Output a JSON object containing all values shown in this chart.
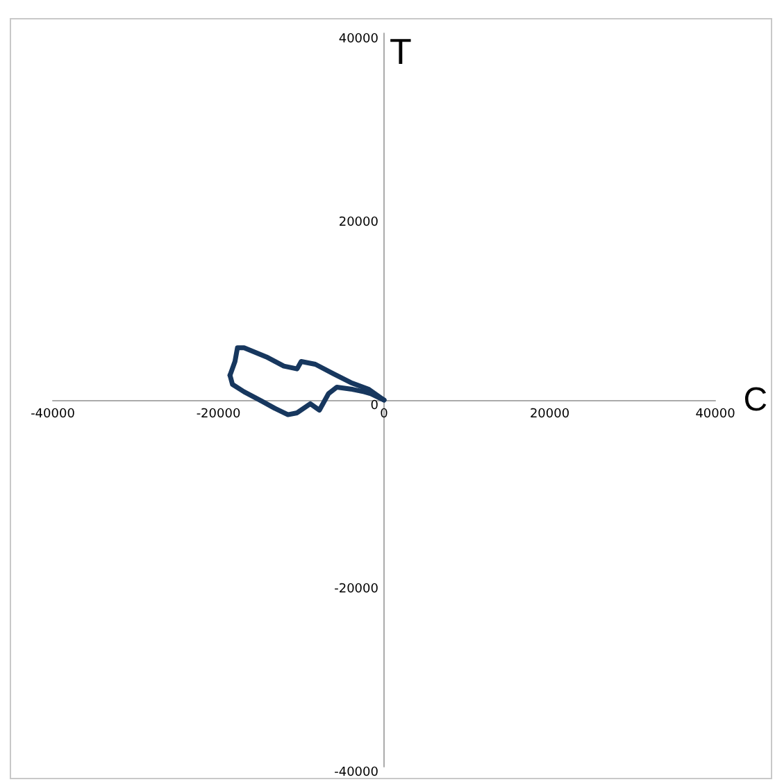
{
  "chart_data": {
    "type": "line",
    "xlabel": "C",
    "ylabel": "T",
    "xlim": [
      -40000,
      40000
    ],
    "xticks": [
      -40000,
      -20000,
      0,
      20000,
      40000
    ],
    "ylim": [
      -40000,
      40000
    ],
    "yticks": [
      -40000,
      -20000,
      0,
      20000,
      40000
    ],
    "marker": "none",
    "line_style": "solid",
    "series": [
      {
        "color": "#17375e",
        "x": [
          0,
          -1900,
          -4000,
          -6200,
          -8300,
          -10000,
          -10500,
          -12100,
          -14200,
          -16900,
          -17700,
          -18000,
          -18600
        ],
        "values": [
          0,
          1200,
          1900,
          2900,
          3900,
          4200,
          3400,
          3700,
          4700,
          5700,
          5700,
          4200,
          2700
        ]
      },
      {
        "color": "#17375e",
        "x": [
          -18600,
          -18300,
          -16900,
          -14800,
          -13200,
          -11600,
          -10500,
          -8900,
          -7800,
          -6700,
          -5700,
          -4000,
          -2400,
          -1600,
          0
        ],
        "values": [
          2700,
          1700,
          900,
          -100,
          -900,
          -1600,
          -1400,
          -400,
          -1100,
          700,
          1400,
          1200,
          900,
          700,
          0
        ]
      }
    ]
  }
}
